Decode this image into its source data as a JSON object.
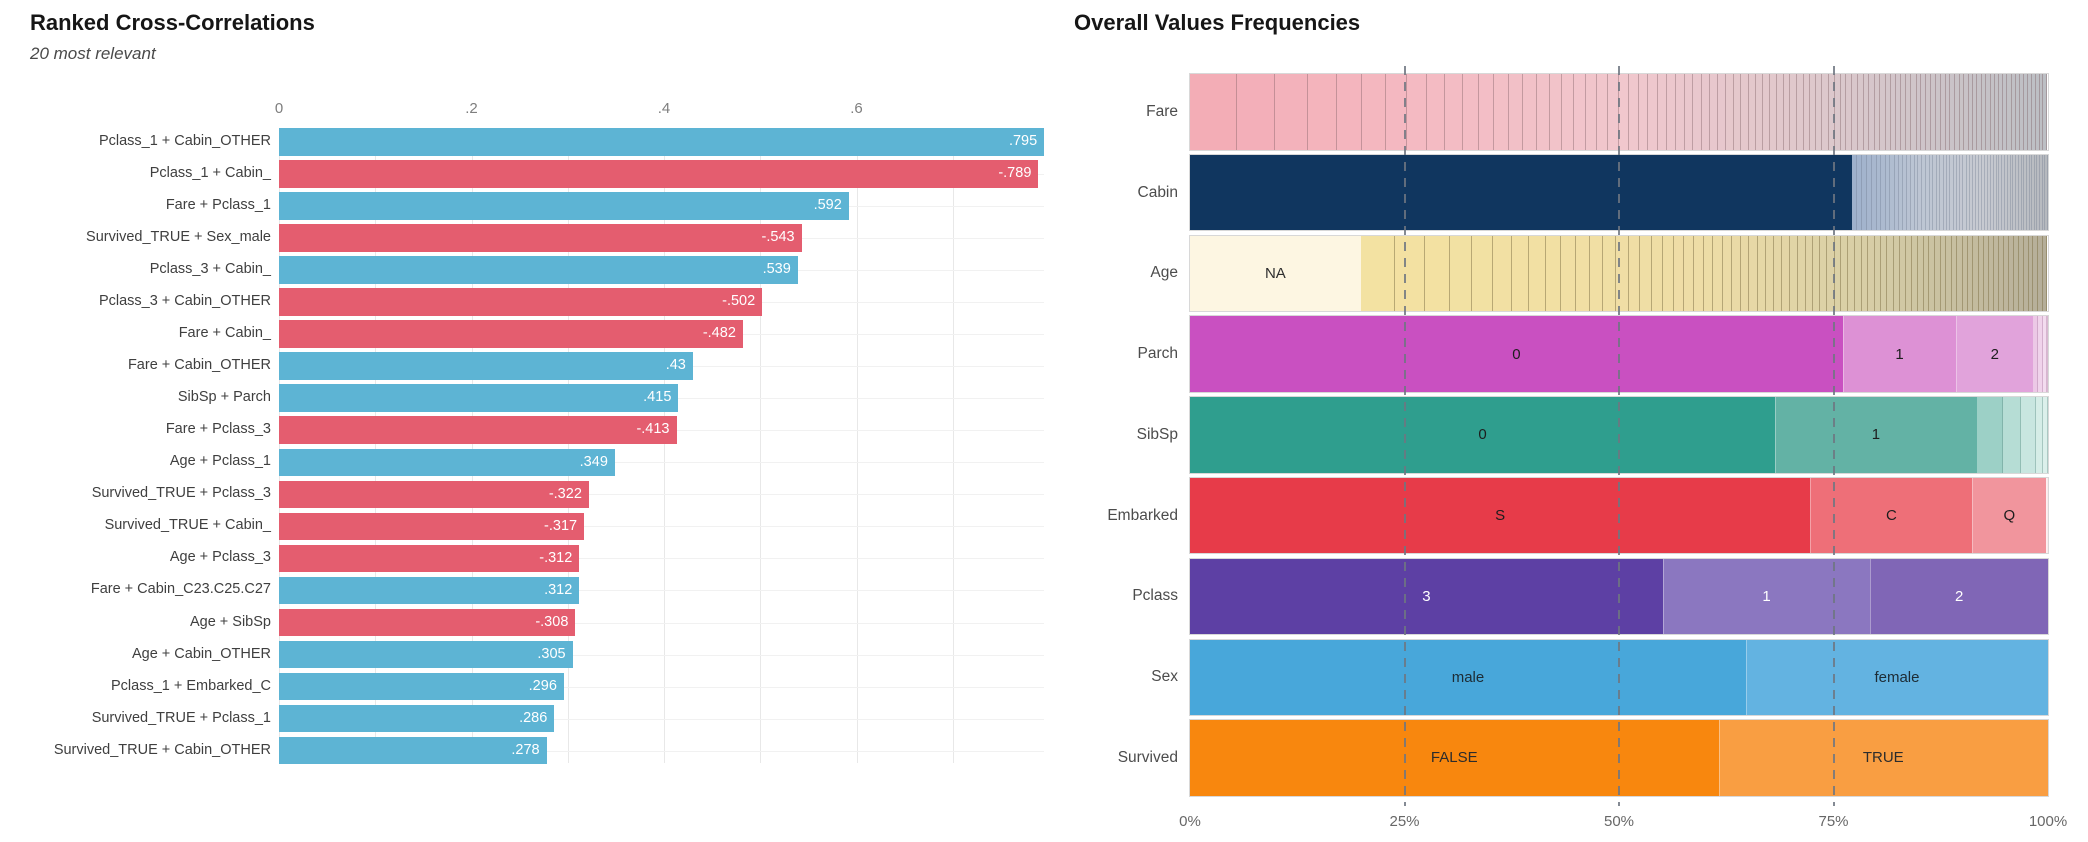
{
  "chart_data": [
    {
      "type": "bar",
      "orientation": "horizontal",
      "title": "Ranked Cross-Correlations",
      "subtitle": "20 most relevant",
      "xlim": [
        0,
        0.8
      ],
      "gridline_step": 0.1,
      "x_ticks": [
        [
          "0",
          0
        ],
        [
          ".2",
          0.2
        ],
        [
          ".4",
          0.4
        ],
        [
          ".6",
          0.6
        ]
      ],
      "colors": {
        "positive": "#5db4d4",
        "negative": "#e45d6f"
      },
      "bars": [
        {
          "pair": "Pclass_1 + Cabin_OTHER",
          "value": 0.795,
          "label": ".795"
        },
        {
          "pair": "Pclass_1 + Cabin_",
          "value": -0.789,
          "label": "-.789"
        },
        {
          "pair": "Fare + Pclass_1",
          "value": 0.592,
          "label": ".592"
        },
        {
          "pair": "Survived_TRUE + Sex_male",
          "value": -0.543,
          "label": "-.543"
        },
        {
          "pair": "Pclass_3 + Cabin_",
          "value": 0.539,
          "label": ".539"
        },
        {
          "pair": "Pclass_3 + Cabin_OTHER",
          "value": -0.502,
          "label": "-.502"
        },
        {
          "pair": "Fare + Cabin_",
          "value": -0.482,
          "label": "-.482"
        },
        {
          "pair": "Fare + Cabin_OTHER",
          "value": 0.43,
          "label": ".43"
        },
        {
          "pair": "SibSp + Parch",
          "value": 0.415,
          "label": ".415"
        },
        {
          "pair": "Fare + Pclass_3",
          "value": -0.413,
          "label": "-.413"
        },
        {
          "pair": "Age + Pclass_1",
          "value": 0.349,
          "label": ".349"
        },
        {
          "pair": "Survived_TRUE + Pclass_3",
          "value": -0.322,
          "label": "-.322"
        },
        {
          "pair": "Survived_TRUE + Cabin_",
          "value": -0.317,
          "label": "-.317"
        },
        {
          "pair": "Age + Pclass_3",
          "value": -0.312,
          "label": "-.312"
        },
        {
          "pair": "Fare + Cabin_C23.C25.C27",
          "value": 0.312,
          "label": ".312"
        },
        {
          "pair": "Age + SibSp",
          "value": -0.308,
          "label": "-.308"
        },
        {
          "pair": "Age + Cabin_OTHER",
          "value": 0.305,
          "label": ".305"
        },
        {
          "pair": "Pclass_1 + Embarked_C",
          "value": 0.296,
          "label": ".296"
        },
        {
          "pair": "Survived_TRUE + Pclass_1",
          "value": 0.286,
          "label": ".286"
        },
        {
          "pair": "Survived_TRUE + Cabin_OTHER",
          "value": 0.278,
          "label": ".278"
        }
      ]
    },
    {
      "type": "bar",
      "stacked": true,
      "title": "Overall Values Frequencies",
      "x_ticks": [
        [
          "0%",
          0
        ],
        [
          "25%",
          25
        ],
        [
          "50%",
          50
        ],
        [
          "75%",
          75
        ],
        [
          "100%",
          100
        ]
      ],
      "dashed_gridlines_pct": [
        25,
        50,
        75
      ],
      "rows": [
        {
          "name": "Fare",
          "segments": [
            {
              "type": "stripes",
              "pct": 100,
              "count": 95,
              "k": 3,
              "p": 0.72,
              "stops": [
                "#f3abb5",
                "#f4b9c1",
                "#f1c7cd",
                "#dcc8cc",
                "#bcbfc4"
              ],
              "line": "rgba(125,95,100,0.4)"
            }
          ]
        },
        {
          "name": "Cabin",
          "segments": [
            {
              "type": "solid",
              "pct": 77.1,
              "color": "#10365f"
            },
            {
              "type": "stripes",
              "pct": 22.9,
              "count": 58,
              "k": 10,
              "p": 0.4,
              "stops": [
                "#9db0cc",
                "#bcc5d3",
                "#c7cad1",
                "#b6b9be"
              ],
              "line": "rgba(110,120,140,0.35)"
            }
          ]
        },
        {
          "name": "Age",
          "segments": [
            {
              "type": "solid",
              "label": "NA",
              "pct": 19.9,
              "color": "#fdf6e2",
              "text_color": "#2e2e2e"
            },
            {
              "type": "stripes",
              "pct": 80.1,
              "count": 75,
              "k": 3,
              "p": 0.62,
              "stops": [
                "#f3e2a2",
                "#f2e0a3",
                "#eedda6",
                "#d6cda6",
                "#b5ae99"
              ],
              "line": "rgba(125,112,70,0.5)"
            }
          ]
        },
        {
          "name": "Parch",
          "segments": [
            {
              "type": "solid",
              "label": "0",
              "pct": 76.1,
              "color": "#c950c1",
              "text_color": "#1d1d1d"
            },
            {
              "type": "solid",
              "label": "1",
              "pct": 13.2,
              "color": "#dd91d5",
              "text_color": "#1d1d1d"
            },
            {
              "type": "solid",
              "label": "2",
              "pct": 9.0,
              "color": "#e1a3db",
              "text_color": "#1d1d1d"
            },
            {
              "type": "stripes",
              "pct": 1.7,
              "widths": [
                0.56,
                0.56,
                0.45,
                0.13
              ],
              "stops": [
                "#eac3e4",
                "#f6e3f2"
              ],
              "line": "rgba(160,110,150,0.35)"
            }
          ]
        },
        {
          "name": "SibSp",
          "segments": [
            {
              "type": "solid",
              "label": "0",
              "pct": 68.2,
              "color": "#2f9e8e",
              "text_color": "#1d1d1d"
            },
            {
              "type": "solid",
              "label": "1",
              "pct": 23.5,
              "color": "#63b2a5",
              "text_color": "#1d1d1d"
            },
            {
              "type": "stripes",
              "pct": 8.3,
              "widths": [
                3.1,
                2.0,
                1.8,
                0.8,
                0.6
              ],
              "stops": [
                "#8dc8bd",
                "#dff2ed"
              ],
              "line": "rgba(80,130,120,0.35)"
            }
          ]
        },
        {
          "name": "Embarked",
          "segments": [
            {
              "type": "solid",
              "label": "S",
              "pct": 72.3,
              "color": "#e73b49",
              "text_color": "#1d1d1d"
            },
            {
              "type": "solid",
              "label": "C",
              "pct": 18.9,
              "color": "#ee6f78",
              "text_color": "#1d1d1d"
            },
            {
              "type": "solid",
              "label": "Q",
              "pct": 8.6,
              "color": "#f1959d",
              "text_color": "#1d1d1d"
            },
            {
              "type": "solid",
              "pct": 0.2,
              "color": "#fbebed"
            }
          ]
        },
        {
          "name": "Pclass",
          "segments": [
            {
              "type": "solid",
              "label": "3",
              "pct": 55.1,
              "color": "#5d40a4",
              "text_color": "#ffffff"
            },
            {
              "type": "solid",
              "label": "1",
              "pct": 24.2,
              "color": "#8b77c0",
              "text_color": "#ffffff"
            },
            {
              "type": "solid",
              "label": "2",
              "pct": 20.7,
              "color": "#8066b6",
              "text_color": "#ffffff"
            }
          ]
        },
        {
          "name": "Sex",
          "segments": [
            {
              "type": "solid",
              "label": "male",
              "pct": 64.8,
              "color": "#48a7da",
              "text_color": "#1d2c35"
            },
            {
              "type": "solid",
              "label": "female",
              "pct": 35.2,
              "color": "#63b3e1",
              "text_color": "#1d2c35"
            }
          ]
        },
        {
          "name": "Survived",
          "segments": [
            {
              "type": "solid",
              "label": "FALSE",
              "pct": 61.6,
              "color": "#f8870e",
              "text_color": "#2c2c2c"
            },
            {
              "type": "solid",
              "label": "TRUE",
              "pct": 38.4,
              "color": "#f99e42",
              "text_color": "#2c2c2c"
            }
          ]
        }
      ]
    }
  ]
}
